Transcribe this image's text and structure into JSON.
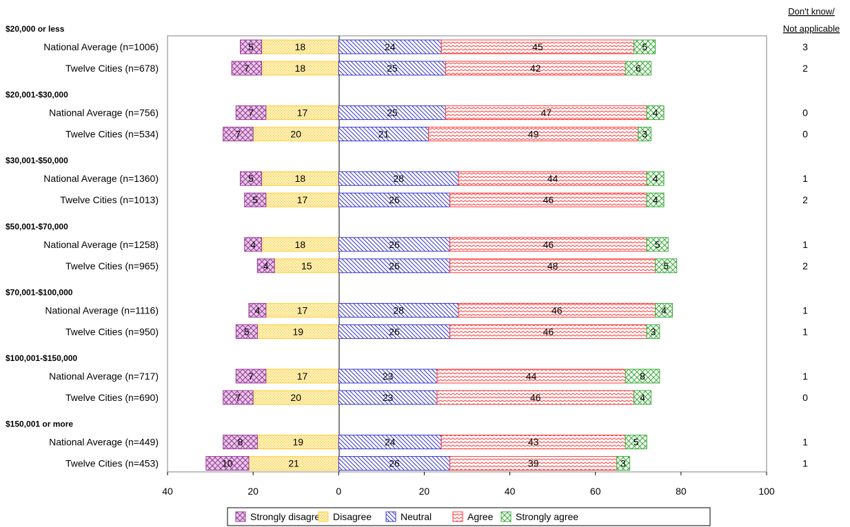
{
  "chart_data": {
    "type": "bar",
    "orientation": "horizontal-diverging",
    "xlim": [
      -40,
      100
    ],
    "xticks": [
      -40,
      -20,
      0,
      20,
      40,
      60,
      80,
      100
    ],
    "xtick_labels": [
      "40",
      "20",
      "0",
      "20",
      "40",
      "60",
      "80",
      "100"
    ],
    "legend_position": "bottom",
    "dont_know_header": [
      "Don't know/",
      "Not applicable"
    ],
    "series": [
      {
        "name": "Strongly disagree",
        "color": "#993399",
        "side": "negative",
        "order": 2
      },
      {
        "name": "Disagree",
        "color": "#FFCC33",
        "side": "negative",
        "order": 1
      },
      {
        "name": "Neutral",
        "color": "#3333CC",
        "side": "positive",
        "order": 1
      },
      {
        "name": "Agree",
        "color": "#FF3333",
        "side": "positive",
        "order": 2
      },
      {
        "name": "Strongly agree",
        "color": "#33AA33",
        "side": "positive",
        "order": 3
      }
    ],
    "groups": [
      {
        "label": "$20,000 or less",
        "rows": [
          {
            "label": "National Average (n=1006)",
            "values": [
              5,
              18,
              24,
              45,
              5
            ],
            "dont_know": "3"
          },
          {
            "label": "Twelve Cities (n=678)",
            "values": [
              7,
              18,
              25,
              42,
              6
            ],
            "dont_know": "2"
          }
        ]
      },
      {
        "label": "$20,001-$30,000",
        "rows": [
          {
            "label": "National Average (n=756)",
            "values": [
              7,
              17,
              25,
              47,
              4
            ],
            "dont_know": "0"
          },
          {
            "label": "Twelve Cities (n=534)",
            "values": [
              7,
              20,
              21,
              49,
              3
            ],
            "dont_know": "0"
          }
        ]
      },
      {
        "label": "$30,001-$50,000",
        "rows": [
          {
            "label": "National Average (n=1360)",
            "values": [
              5,
              18,
              28,
              44,
              4
            ],
            "dont_know": "1"
          },
          {
            "label": "Twelve Cities (n=1013)",
            "values": [
              5,
              17,
              26,
              46,
              4
            ],
            "dont_know": "2"
          }
        ]
      },
      {
        "label": "$50,001-$70,000",
        "rows": [
          {
            "label": "National Average (n=1258)",
            "values": [
              4,
              18,
              26,
              46,
              5
            ],
            "dont_know": "1"
          },
          {
            "label": "Twelve Cities (n=965)",
            "values": [
              4,
              15,
              26,
              48,
              5
            ],
            "dont_know": "2"
          }
        ]
      },
      {
        "label": "$70,001-$100,000",
        "rows": [
          {
            "label": "National Average (n=1116)",
            "values": [
              4,
              17,
              28,
              46,
              4
            ],
            "dont_know": "1"
          },
          {
            "label": "Twelve Cities (n=950)",
            "values": [
              5,
              19,
              26,
              46,
              3
            ],
            "dont_know": "1"
          }
        ]
      },
      {
        "label": "$100,001-$150,000",
        "rows": [
          {
            "label": "National Average (n=717)",
            "values": [
              7,
              17,
              23,
              44,
              8
            ],
            "dont_know": "1"
          },
          {
            "label": "Twelve Cities (n=690)",
            "values": [
              7,
              20,
              23,
              46,
              4
            ],
            "dont_know": "0"
          }
        ]
      },
      {
        "label": "$150,001 or more",
        "rows": [
          {
            "label": "National Average (n=449)",
            "values": [
              8,
              19,
              24,
              43,
              5
            ],
            "dont_know": "1"
          },
          {
            "label": "Twelve Cities (n=453)",
            "values": [
              10,
              21,
              26,
              39,
              3
            ],
            "dont_know": "1"
          }
        ]
      }
    ]
  }
}
